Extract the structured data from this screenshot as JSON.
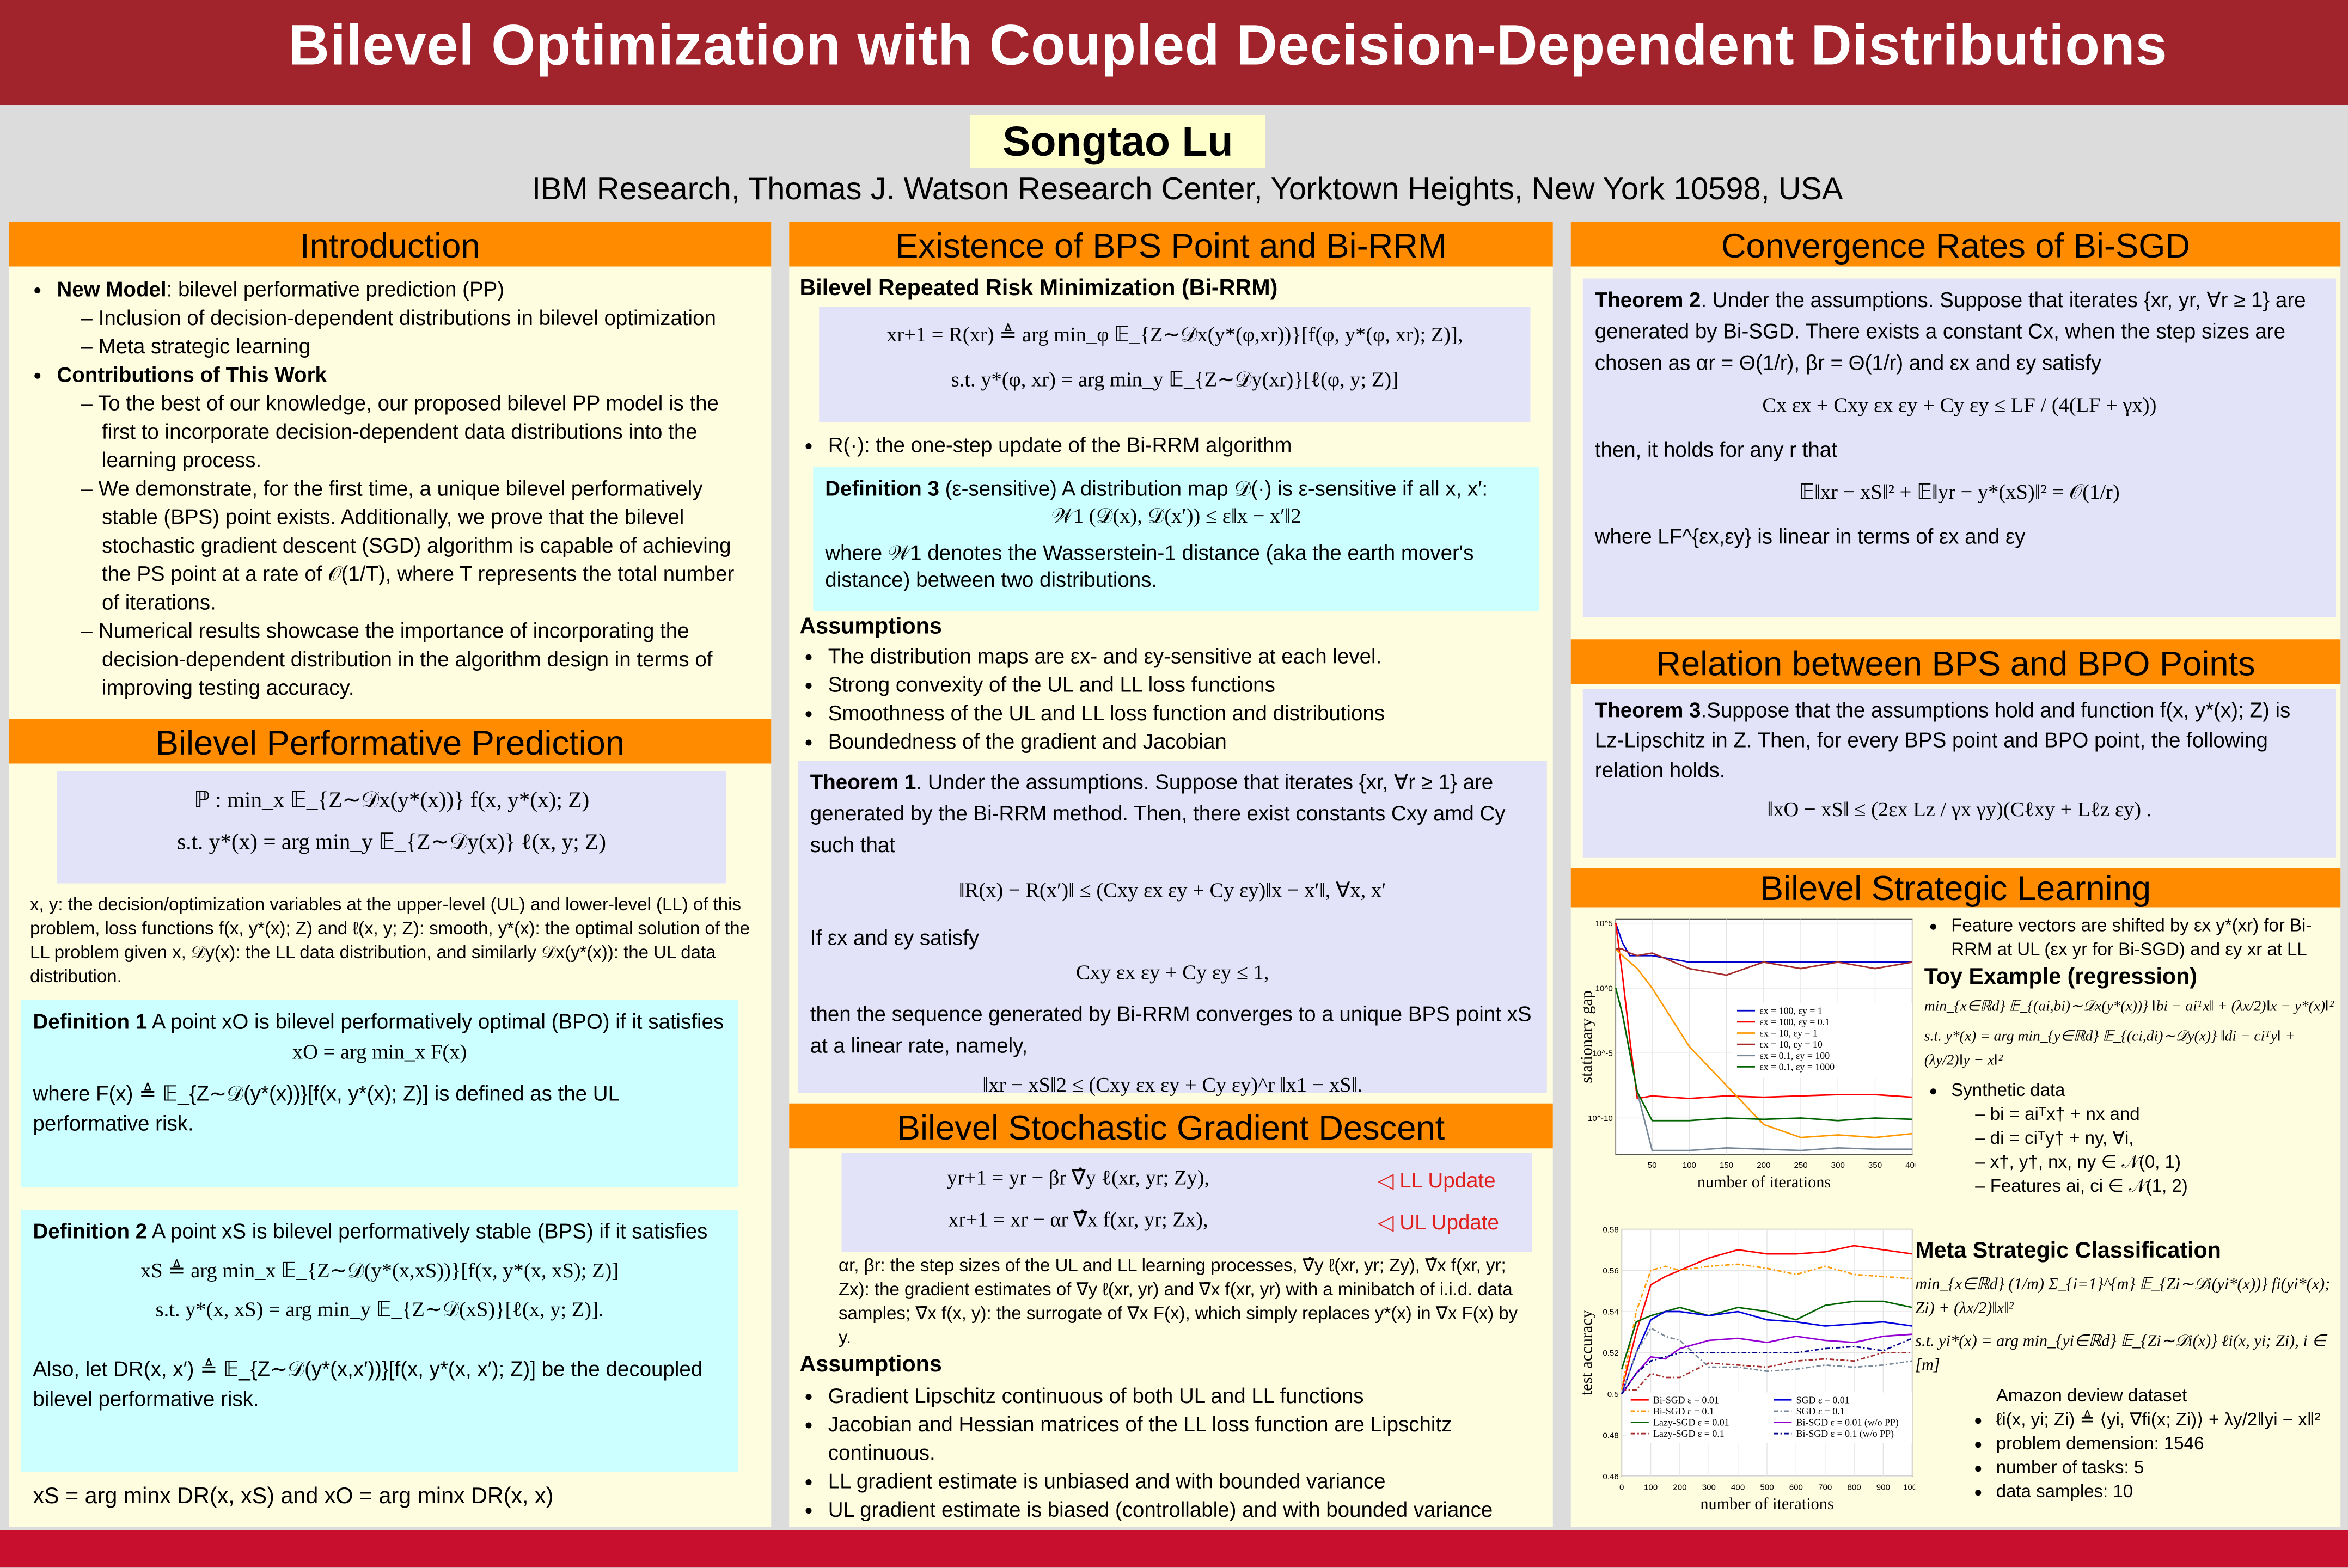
{
  "header": {
    "title": "Bilevel Optimization with Coupled Decision-Dependent Distributions",
    "author": "Songtao Lu",
    "affiliation": "IBM Research, Thomas J. Watson Research Center, Yorktown Heights, New York 10598, USA"
  },
  "intro": {
    "title": "Introduction",
    "new_model_label": "New Model",
    "new_model_text": ": bilevel performative prediction (PP)",
    "new_model_sub": [
      "Inclusion of decision-dependent distributions in bilevel optimization",
      "Meta strategic learning"
    ],
    "contrib_label": "Contributions of This Work",
    "contrib_sub": [
      "To the best of our knowledge, our proposed bilevel PP model is the first to incorporate decision-dependent data distributions into the learning process.",
      "We demonstrate, for the first time, a unique bilevel performatively stable (BPS) point exists. Additionally, we prove that the bilevel stochastic gradient descent (SGD) algorithm is capable of achieving the PS point at a rate of 𝒪(1/T), where T represents the total number of iterations.",
      "Numerical results showcase the importance of incorporating the decision-dependent distribution in the algorithm design in terms of improving testing accuracy."
    ]
  },
  "bpp": {
    "title": "Bilevel Performative Prediction",
    "eq1": "ℙ :   min_x   𝔼_{Z∼𝒟x(y*(x))} f(x, y*(x); Z)",
    "eq2": "s.t.   y*(x) = arg min_y 𝔼_{Z∼𝒟y(x)} ℓ(x, y; Z)",
    "desc": "x, y: the decision/optimization variables at the upper-level (UL) and lower-level (LL) of this problem, loss functions f(x, y*(x); Z) and ℓ(x, y; Z): smooth, y*(x): the optimal solution of the LL problem given x, 𝒟y(x): the LL data distribution, and similarly 𝒟x(y*(x)): the UL data distribution.",
    "def1_label": "Definition 1",
    "def1_text": " A point xO is bilevel performatively optimal (BPO) if it satisfies",
    "def1_eq": "xO = arg min_x F(x)",
    "def1_after": "where F(x) ≜ 𝔼_{Z∼𝒟(y*(x))}[f(x, y*(x); Z)] is defined as the UL performative risk.",
    "def2_label": "Definition 2",
    "def2_text": " A point xS is bilevel performatively stable (BPS) if it satisfies",
    "def2_eq1": "xS ≜ arg min_x 𝔼_{Z∼𝒟(y*(x,xS))}[f(x, y*(x, xS); Z)]",
    "def2_eq2": "s.t. y*(x, xS) = arg min_y 𝔼_{Z∼𝒟(xS)}[ℓ(x, y; Z)].",
    "def2_after": "Also, let DR(x, x′) ≜ 𝔼_{Z∼𝒟(y*(x,x′))}[f(x, y*(x, x′); Z)] be the decoupled bilevel performative risk.",
    "final_eq": "xS = arg minx DR(x, xS) and xO = arg minx DR(x, x)"
  },
  "existence": {
    "title": "Existence of BPS Point and Bi-RRM",
    "subtitle": "Bilevel Repeated Risk Minimization (Bi-RRM)",
    "eq1": "xr+1 = R(xr) ≜ arg min_φ 𝔼_{Z∼𝒟x(y*(φ,xr))}[f(φ, y*(φ, xr); Z)],",
    "eq2": "s.t. y*(φ, xr) = arg min_y 𝔼_{Z∼𝒟y(xr)}[ℓ(φ, y; Z)]",
    "bullet": "R(·): the one-step update of the Bi-RRM algorithm",
    "def3_label": "Definition 3",
    "def3_text": " (ε-sensitive) A distribution map 𝒟(·) is ε-sensitive if all x, x′:",
    "def3_eq": "𝒲1 (𝒟(x), 𝒟(x′)) ≤ ε‖x − x′‖2",
    "def3_after": "where 𝒲1 denotes the Wasserstein-1 distance (aka the earth mover's distance) between two distributions.",
    "assump_title": "Assumptions",
    "assumptions": [
      "The distribution maps are εx- and εy-sensitive at each level.",
      "Strong convexity of the UL and LL loss functions",
      "Smoothness of the UL and LL loss function and distributions",
      "Boundedness of the gradient and Jacobian"
    ],
    "thm1_label": "Theorem 1",
    "thm1_text": ". Under the assumptions. Suppose that iterates {xr, ∀r ≥ 1} are generated by the Bi-RRM method. Then, there exist constants Cxy amd Cy such that",
    "thm1_eq1": "‖R(x) − R(x′)‖ ≤ (Cxy εx εy + Cy εy)‖x − x′‖, ∀x, x′",
    "thm1_if": "If εx and εy satisfy",
    "thm1_eq2": "Cxy εx εy + Cy εy ≤ 1,",
    "thm1_then": "then the sequence generated by Bi-RRM converges to a unique BPS point xS at a linear rate, namely,",
    "thm1_eq3": "‖xr − xS‖2 ≤ (Cxy εx εy + Cy εy)^r ‖x1 − xS‖."
  },
  "sgd": {
    "title": "Bilevel Stochastic Gradient Descent",
    "eq1": "yr+1 = yr − βr ∇̂y ℓ(xr, yr; Zy),",
    "eq1_tag": "◁ LL Update",
    "eq2": "xr+1 = xr − αr ∇̂x f(xr, yr; Zx),",
    "eq2_tag": "◁ UL Update",
    "desc": "αr, βr: the step sizes of the UL and LL learning processes, ∇̂y ℓ(xr, yr; Zy), ∇̂x f(xr, yr; Zx): the gradient estimates of ∇y ℓ(xr, yr) and ∇̄x f(xr, yr) with a minibatch of i.i.d. data samples; ∇̄x f(x, y): the surrogate of ∇x F(x), which simply replaces y*(x) in ∇x F(x) by y.",
    "assump_title": "Assumptions",
    "assumptions": [
      "Gradient Lipschitz continuous of both UL and LL functions",
      "Jacobian and Hessian matrices of the LL loss function are Lipschitz continuous.",
      "LL gradient estimate is unbiased and with bounded variance",
      "UL gradient estimate is biased (controllable) and with bounded variance"
    ]
  },
  "conv": {
    "title": "Convergence Rates of Bi-SGD",
    "thm2_label": "Theorem 2",
    "thm2_text": ". Under the assumptions. Suppose that iterates {xr, yr, ∀r ≥ 1} are generated by Bi-SGD. There exists a constant Cx, when the step sizes are chosen as αr = Θ(1/r), βr = Θ(1/r) and εx and εy satisfy",
    "thm2_eq1": "Cx εx + Cxy εx εy + Cy εy ≤ LF / (4(LF + γx))",
    "thm2_then": "then, it holds for any r that",
    "thm2_eq2": "𝔼‖xr − xS‖² + 𝔼‖yr − y*(xS)‖² = 𝒪(1/r)",
    "thm2_after": "where LF^{εx,εy} is linear in terms of εx and εy"
  },
  "relation": {
    "title": "Relation between BPS and BPO Points",
    "thm3_label": "Theorem 3",
    "thm3_text": ".Suppose that the assumptions hold and function f(x, y*(x); Z) is Lz-Lipschitz in Z. Then, for every BPS point and BPO point, the following relation holds.",
    "thm3_eq": "‖xO − xS‖ ≤ (2εx Lz / γx γy)(Cℓxy + Lℓz εy) ."
  },
  "strategic": {
    "title": "Bilevel Strategic Learning",
    "bullet1": "Feature vectors are shifted by εx y*(xr) for Bi-RRM at UL (εx yr for Bi-SGD) and εy xr at LL",
    "toy_title": "Toy Example (regression)",
    "toy_eq1": "min_{x∈ℝd} 𝔼_{(ai,bi)∼𝒟x(y*(x))} ‖bi − aiᵀx‖ + (λx/2)‖x − y*(x)‖²",
    "toy_eq2": "s.t. y*(x) = arg min_{y∈ℝd} 𝔼_{(ci,di)∼𝒟y(x)} ‖di − ciᵀy‖ + (λy/2)‖y − x‖²",
    "synthetic": "Synthetic data",
    "synthetic_sub": [
      "bi = aiᵀx† + nx and",
      "di = ciᵀy† + ny, ∀i,",
      "x†, y†, nx, ny ∈ 𝒩(0, 1)",
      "Features ai, ci ∈ 𝒩(1, 2)"
    ],
    "meta_title": "Meta Strategic Classification",
    "meta_eq1": "min_{x∈ℝd} (1/m) Σ_{i=1}^{m} 𝔼_{Zi∼𝒟i(yi*(x))} fi(yi*(x); Zi) + (λx/2)‖x‖²",
    "meta_eq2": "s.t. yi*(x) = arg min_{yi∈ℝd} 𝔼_{Zi∼𝒟i(x)} ℓi(x, yi; Zi), i ∈ [m]",
    "amazon": "Amazon deview dataset",
    "amazon_sub": [
      "ℓi(x, yi; Zi) ≜ ⟨yi, ∇fi(x; Zi)⟩ + λy/2‖yi − x‖²",
      "problem demension: 1546",
      "number of tasks: 5",
      "data samples: 10"
    ]
  },
  "chart_data": [
    {
      "type": "line",
      "title": "",
      "xlabel": "number of iterations",
      "ylabel": "stationary gap",
      "yscale": "log",
      "ylim_log10": [
        -12.8,
        5.3
      ],
      "xlim": [
        1,
        400
      ],
      "xticks": [
        50,
        100,
        150,
        200,
        250,
        300,
        350,
        400
      ],
      "yticks": [
        "10^5",
        "10^0",
        "10^-5",
        "10^-10"
      ],
      "ytick_values_log10": [
        5,
        0,
        -5,
        -10
      ],
      "legend": "right-middle",
      "grid": true,
      "x": [
        1,
        10,
        20,
        30,
        50,
        100,
        150,
        200,
        250,
        300,
        350,
        400
      ],
      "series": [
        {
          "name": "εx = 100, εy = 1",
          "color": "#0000cc",
          "dash": "solid",
          "values_log10": [
            5,
            3.5,
            2.5,
            2.5,
            2.5,
            2,
            2,
            2,
            2,
            2,
            2,
            2
          ]
        },
        {
          "name": "εx = 100, εy = 0.1",
          "color": "#ff0000",
          "dash": "solid",
          "values_log10": [
            5,
            1,
            -4,
            -8.5,
            -8.3,
            -8.5,
            -8.3,
            -8.4,
            -8.3,
            -8.2,
            -8.2,
            -8.4
          ]
        },
        {
          "name": "εx = 10, εy = 1",
          "color": "#ff9900",
          "dash": "solid",
          "values_log10": [
            3,
            2.5,
            2,
            1.5,
            0,
            -4.5,
            -7.5,
            -10.5,
            -11.5,
            -11.3,
            -11.5,
            -11.2
          ]
        },
        {
          "name": "εx = 10, εy = 10",
          "color": "#a52a2a",
          "dash": "solid",
          "values_log10": [
            3,
            3,
            2.7,
            2.5,
            2.7,
            1.5,
            1,
            2,
            1.5,
            2,
            1.5,
            2
          ]
        },
        {
          "name": "εx = 0.1, εy = 100",
          "color": "#778899",
          "dash": "solid",
          "values_log10": [
            0,
            -2,
            -5,
            -8,
            -12.5,
            -12.5,
            -12.3,
            -12.4,
            -12.5,
            -12.3,
            -12.4,
            -12.4
          ]
        },
        {
          "name": "εx = 0.1, εy = 1000",
          "color": "#006400",
          "dash": "solid",
          "values_log10": [
            0,
            -2,
            -5,
            -8,
            -10.2,
            -10.2,
            -10,
            -10.1,
            -10,
            -10.2,
            -10,
            -10.1
          ]
        }
      ]
    },
    {
      "type": "line",
      "title": "",
      "xlabel": "number of iterations",
      "ylabel": "test accuracy",
      "ylim": [
        0.46,
        0.58
      ],
      "xlim": [
        0,
        1000
      ],
      "xticks": [
        0,
        100,
        200,
        300,
        400,
        500,
        600,
        700,
        800,
        900,
        1000
      ],
      "yticks": [
        0.46,
        0.48,
        0.5,
        0.52,
        0.54,
        0.56,
        0.58
      ],
      "legend": "bottom",
      "grid": true,
      "x": [
        0,
        50,
        100,
        150,
        200,
        300,
        400,
        500,
        600,
        700,
        800,
        900,
        1000
      ],
      "series": [
        {
          "name": "Bi-SGD ε = 0.01",
          "color": "#ff0000",
          "dash": "solid",
          "values": [
            0.502,
            0.53,
            0.553,
            0.557,
            0.56,
            0.566,
            0.57,
            0.568,
            0.568,
            0.569,
            0.572,
            0.57,
            0.568
          ]
        },
        {
          "name": "Bi-SGD ε = 0.1",
          "color": "#ff9900",
          "dash": "dashdot",
          "values": [
            0.502,
            0.54,
            0.56,
            0.562,
            0.56,
            0.562,
            0.563,
            0.561,
            0.558,
            0.562,
            0.558,
            0.557,
            0.556
          ]
        },
        {
          "name": "Lazy-SGD ε = 0.01",
          "color": "#006400",
          "dash": "solid",
          "values": [
            0.512,
            0.535,
            0.538,
            0.54,
            0.542,
            0.538,
            0.542,
            0.54,
            0.536,
            0.543,
            0.545,
            0.545,
            0.542
          ]
        },
        {
          "name": "Lazy-SGD ε = 0.1",
          "color": "#a52a2a",
          "dash": "dashdot",
          "values": [
            0.502,
            0.502,
            0.51,
            0.508,
            0.508,
            0.515,
            0.514,
            0.513,
            0.516,
            0.517,
            0.516,
            0.52,
            0.52
          ]
        },
        {
          "name": "SGD ε = 0.01",
          "color": "#0000dd",
          "dash": "solid",
          "values": [
            0.5,
            0.52,
            0.536,
            0.54,
            0.54,
            0.538,
            0.54,
            0.536,
            0.535,
            0.533,
            0.534,
            0.535,
            0.533
          ]
        },
        {
          "name": "SGD ε = 0.1",
          "color": "#778899",
          "dash": "dashdot",
          "values": [
            0.5,
            0.52,
            0.532,
            0.528,
            0.526,
            0.513,
            0.513,
            0.511,
            0.512,
            0.514,
            0.513,
            0.514,
            0.516
          ]
        },
        {
          "name": "Bi-SGD ε = 0.01 (w/o PP)",
          "color": "#9400d3",
          "dash": "solid",
          "values": [
            0.5,
            0.51,
            0.518,
            0.517,
            0.522,
            0.526,
            0.527,
            0.525,
            0.528,
            0.526,
            0.525,
            0.528,
            0.529
          ]
        },
        {
          "name": "Bi-SGD ε = 0.1 (w/o PP)",
          "color": "#00008b",
          "dash": "dashdot",
          "values": [
            0.5,
            0.51,
            0.516,
            0.518,
            0.52,
            0.52,
            0.52,
            0.52,
            0.52,
            0.522,
            0.523,
            0.521,
            0.527
          ]
        }
      ]
    }
  ]
}
